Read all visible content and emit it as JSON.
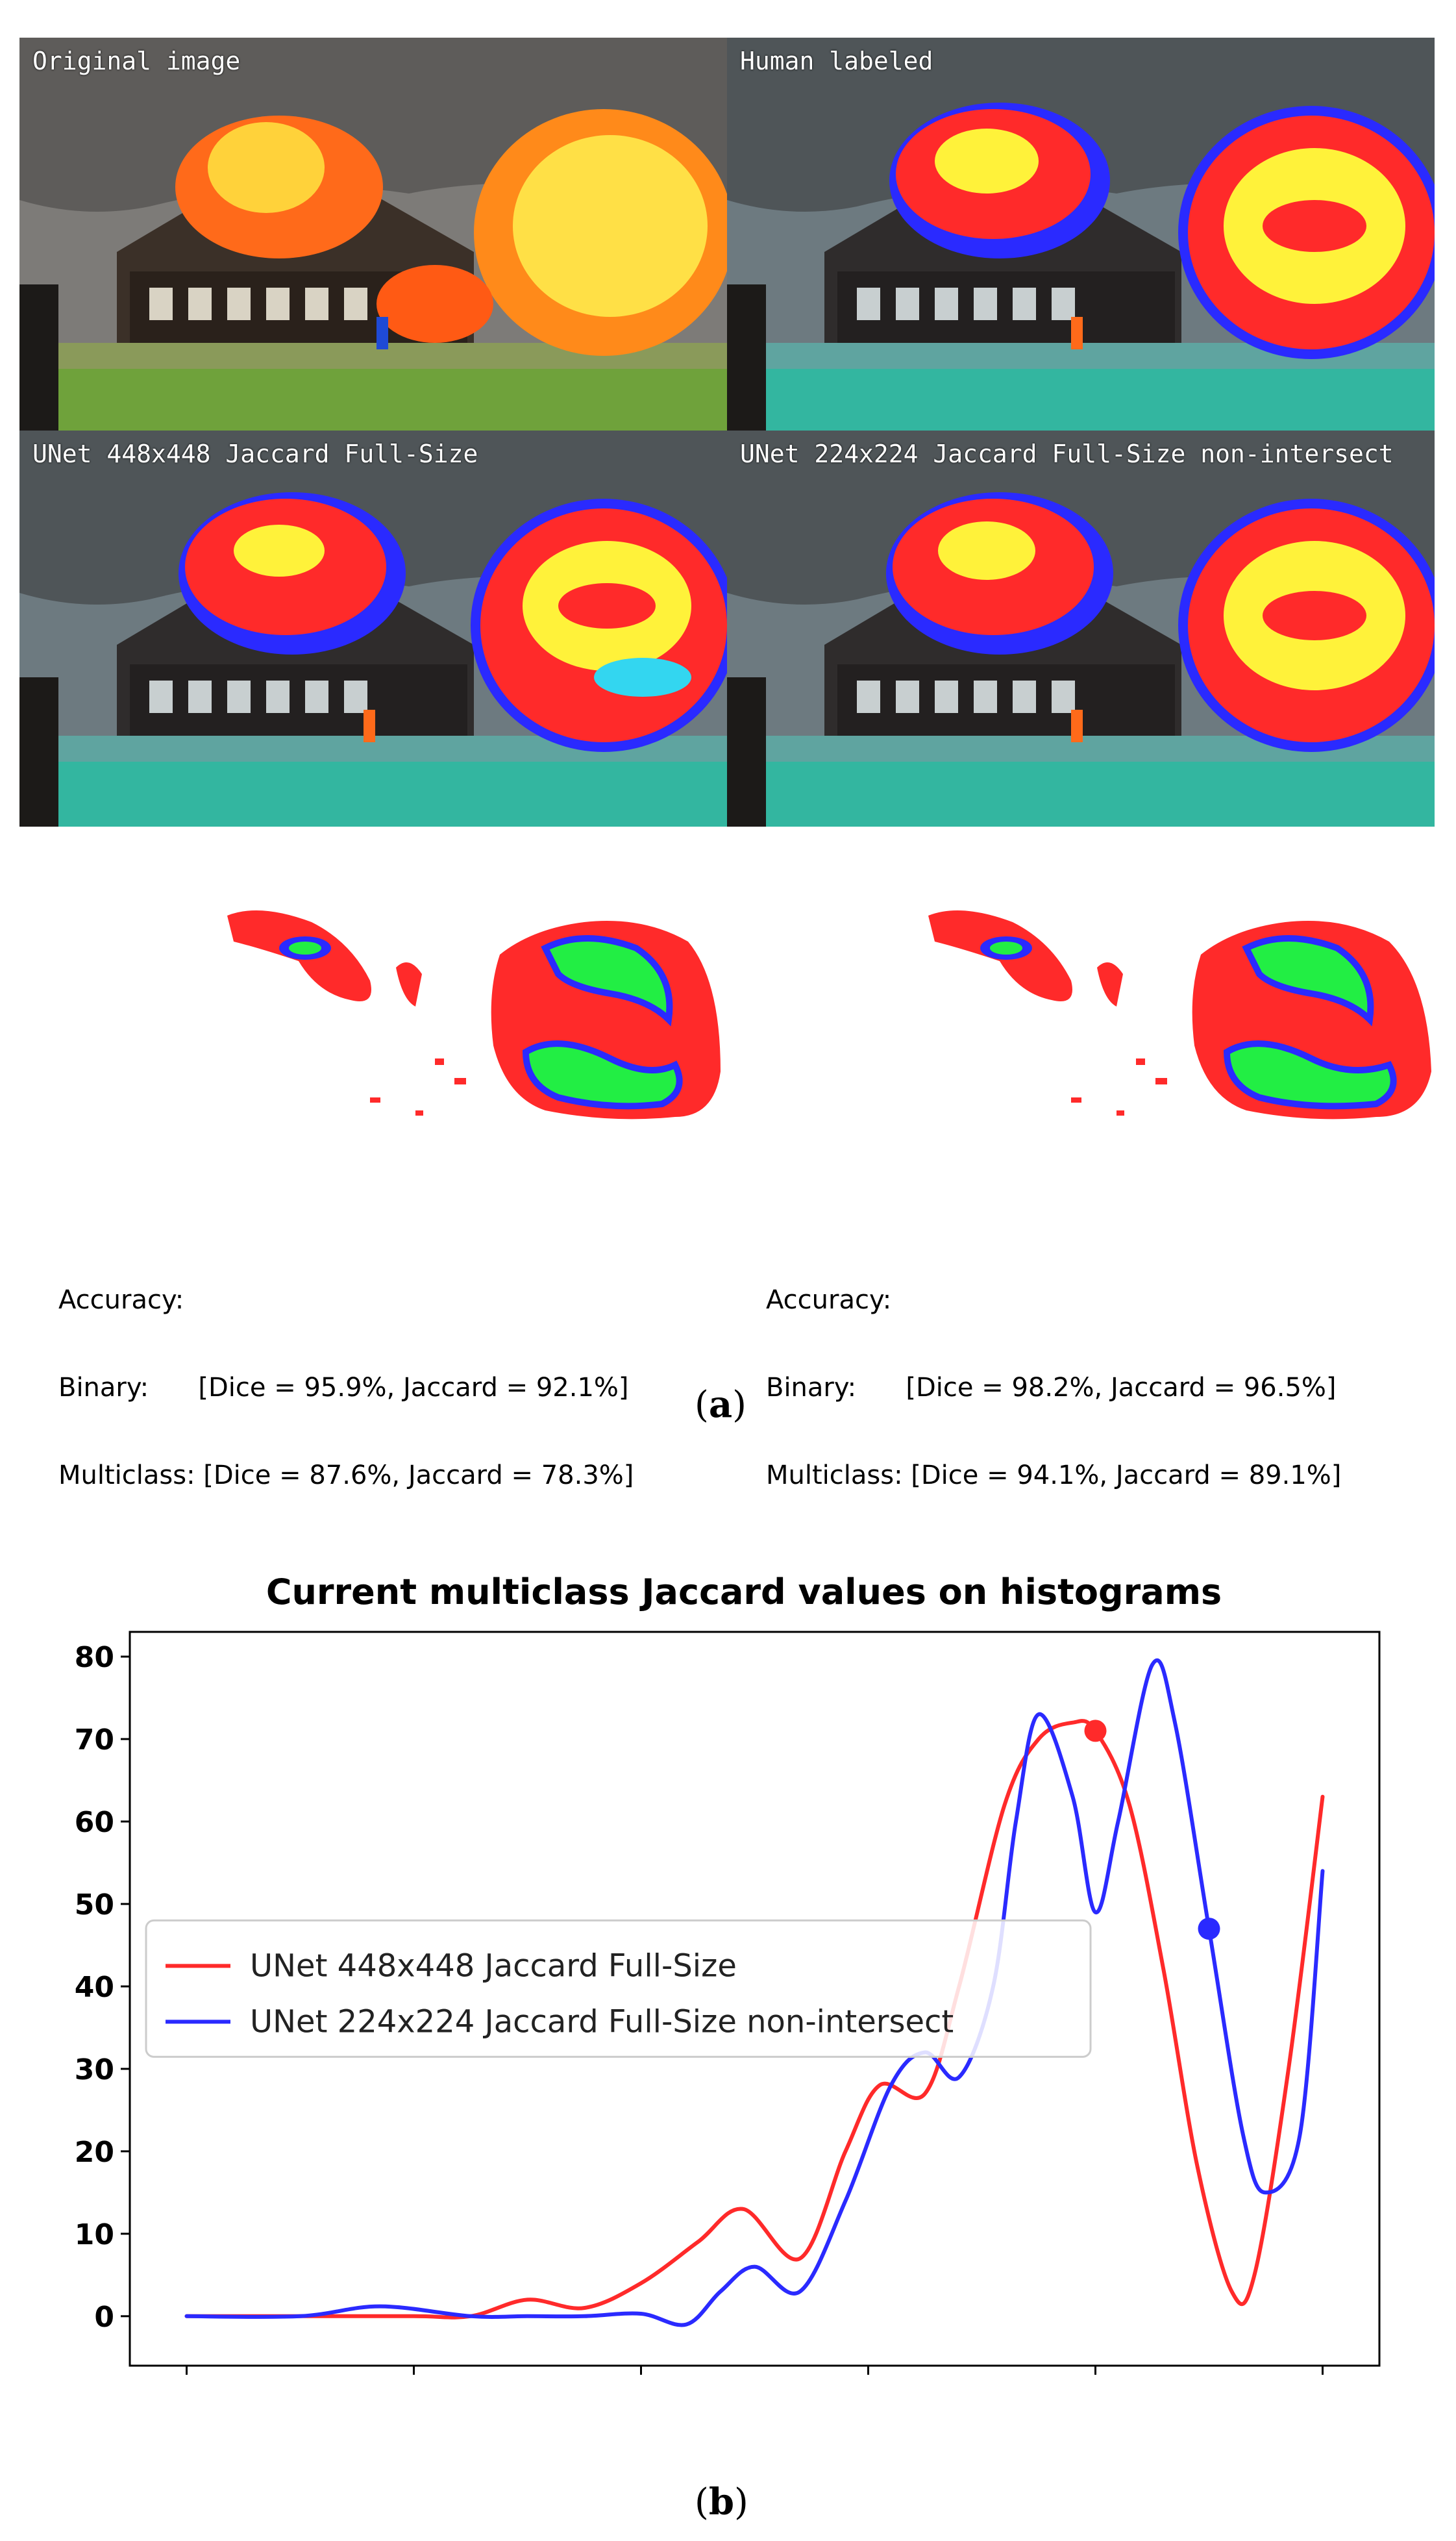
{
  "panels": [
    {
      "title": "Original image"
    },
    {
      "title": "Human labeled"
    },
    {
      "title": "UNet 448x448 Jaccard Full-Size"
    },
    {
      "title": "UNet 224x224 Jaccard Full-Size non-intersect"
    }
  ],
  "accuracy": [
    {
      "heading": "Accuracy:",
      "binary": "Binary:      [Dice = 95.9%, Jaccard = 92.1%]",
      "multiclass": "Multiclass: [Dice = 87.6%, Jaccard = 78.3%]"
    },
    {
      "heading": "Accuracy:",
      "binary": "Binary:      [Dice = 98.2%, Jaccard = 96.5%]",
      "multiclass": "Multiclass: [Dice = 94.1%, Jaccard = 89.1%]"
    }
  ],
  "captions": {
    "a_open": "(",
    "a_letter": "a",
    "a_close": ")",
    "b_open": "(",
    "b_letter": "b",
    "b_close": ")"
  },
  "colors": {
    "red": "#ff2a2a",
    "blue": "#2a2aff",
    "yellow": "#fff23a",
    "green": "#22ee44",
    "cyan": "#33d6f0"
  },
  "chart_data": {
    "type": "line",
    "title": "Current multiclass Jaccard values on histograms",
    "xlim": [
      -5,
      105
    ],
    "ylim": [
      -6,
      83
    ],
    "xticks": [
      0,
      20,
      40,
      60,
      80,
      100
    ],
    "yticks": [
      0,
      10,
      20,
      30,
      40,
      50,
      60,
      70,
      80
    ],
    "grid": false,
    "legend_position": "center-left",
    "series": [
      {
        "name": "UNet 448x448 Jaccard Full-Size",
        "color": "#ff2a2a",
        "x": [
          0,
          10,
          20,
          25,
          30,
          35,
          40,
          45,
          49,
          54,
          58,
          61,
          65,
          68,
          72,
          75,
          78,
          80,
          83,
          86,
          89,
          92,
          94,
          97,
          100
        ],
        "y": [
          0,
          0,
          0,
          0,
          2,
          1,
          4,
          9,
          13,
          7,
          20,
          28,
          27,
          40,
          62,
          70,
          72,
          71,
          62,
          42,
          18,
          3,
          5,
          30,
          63
        ],
        "marker": {
          "x": 80,
          "y": 71
        }
      },
      {
        "name": "UNet 224x224 Jaccard Full-Size non-intersect",
        "color": "#2a2aff",
        "x": [
          0,
          10,
          17,
          25,
          30,
          35,
          40,
          44,
          47,
          50,
          54,
          58,
          62,
          65,
          68,
          71,
          73,
          75,
          78,
          80,
          82,
          85,
          87,
          90,
          93,
          95,
          98,
          100
        ],
        "y": [
          0,
          0,
          1.2,
          0,
          0,
          0,
          0.3,
          -1,
          3,
          6,
          3,
          14,
          28,
          32,
          29,
          40,
          60,
          73,
          63,
          49,
          60,
          79,
          72,
          47,
          22,
          15,
          22,
          54
        ],
        "marker": {
          "x": 90,
          "y": 47
        }
      }
    ]
  }
}
